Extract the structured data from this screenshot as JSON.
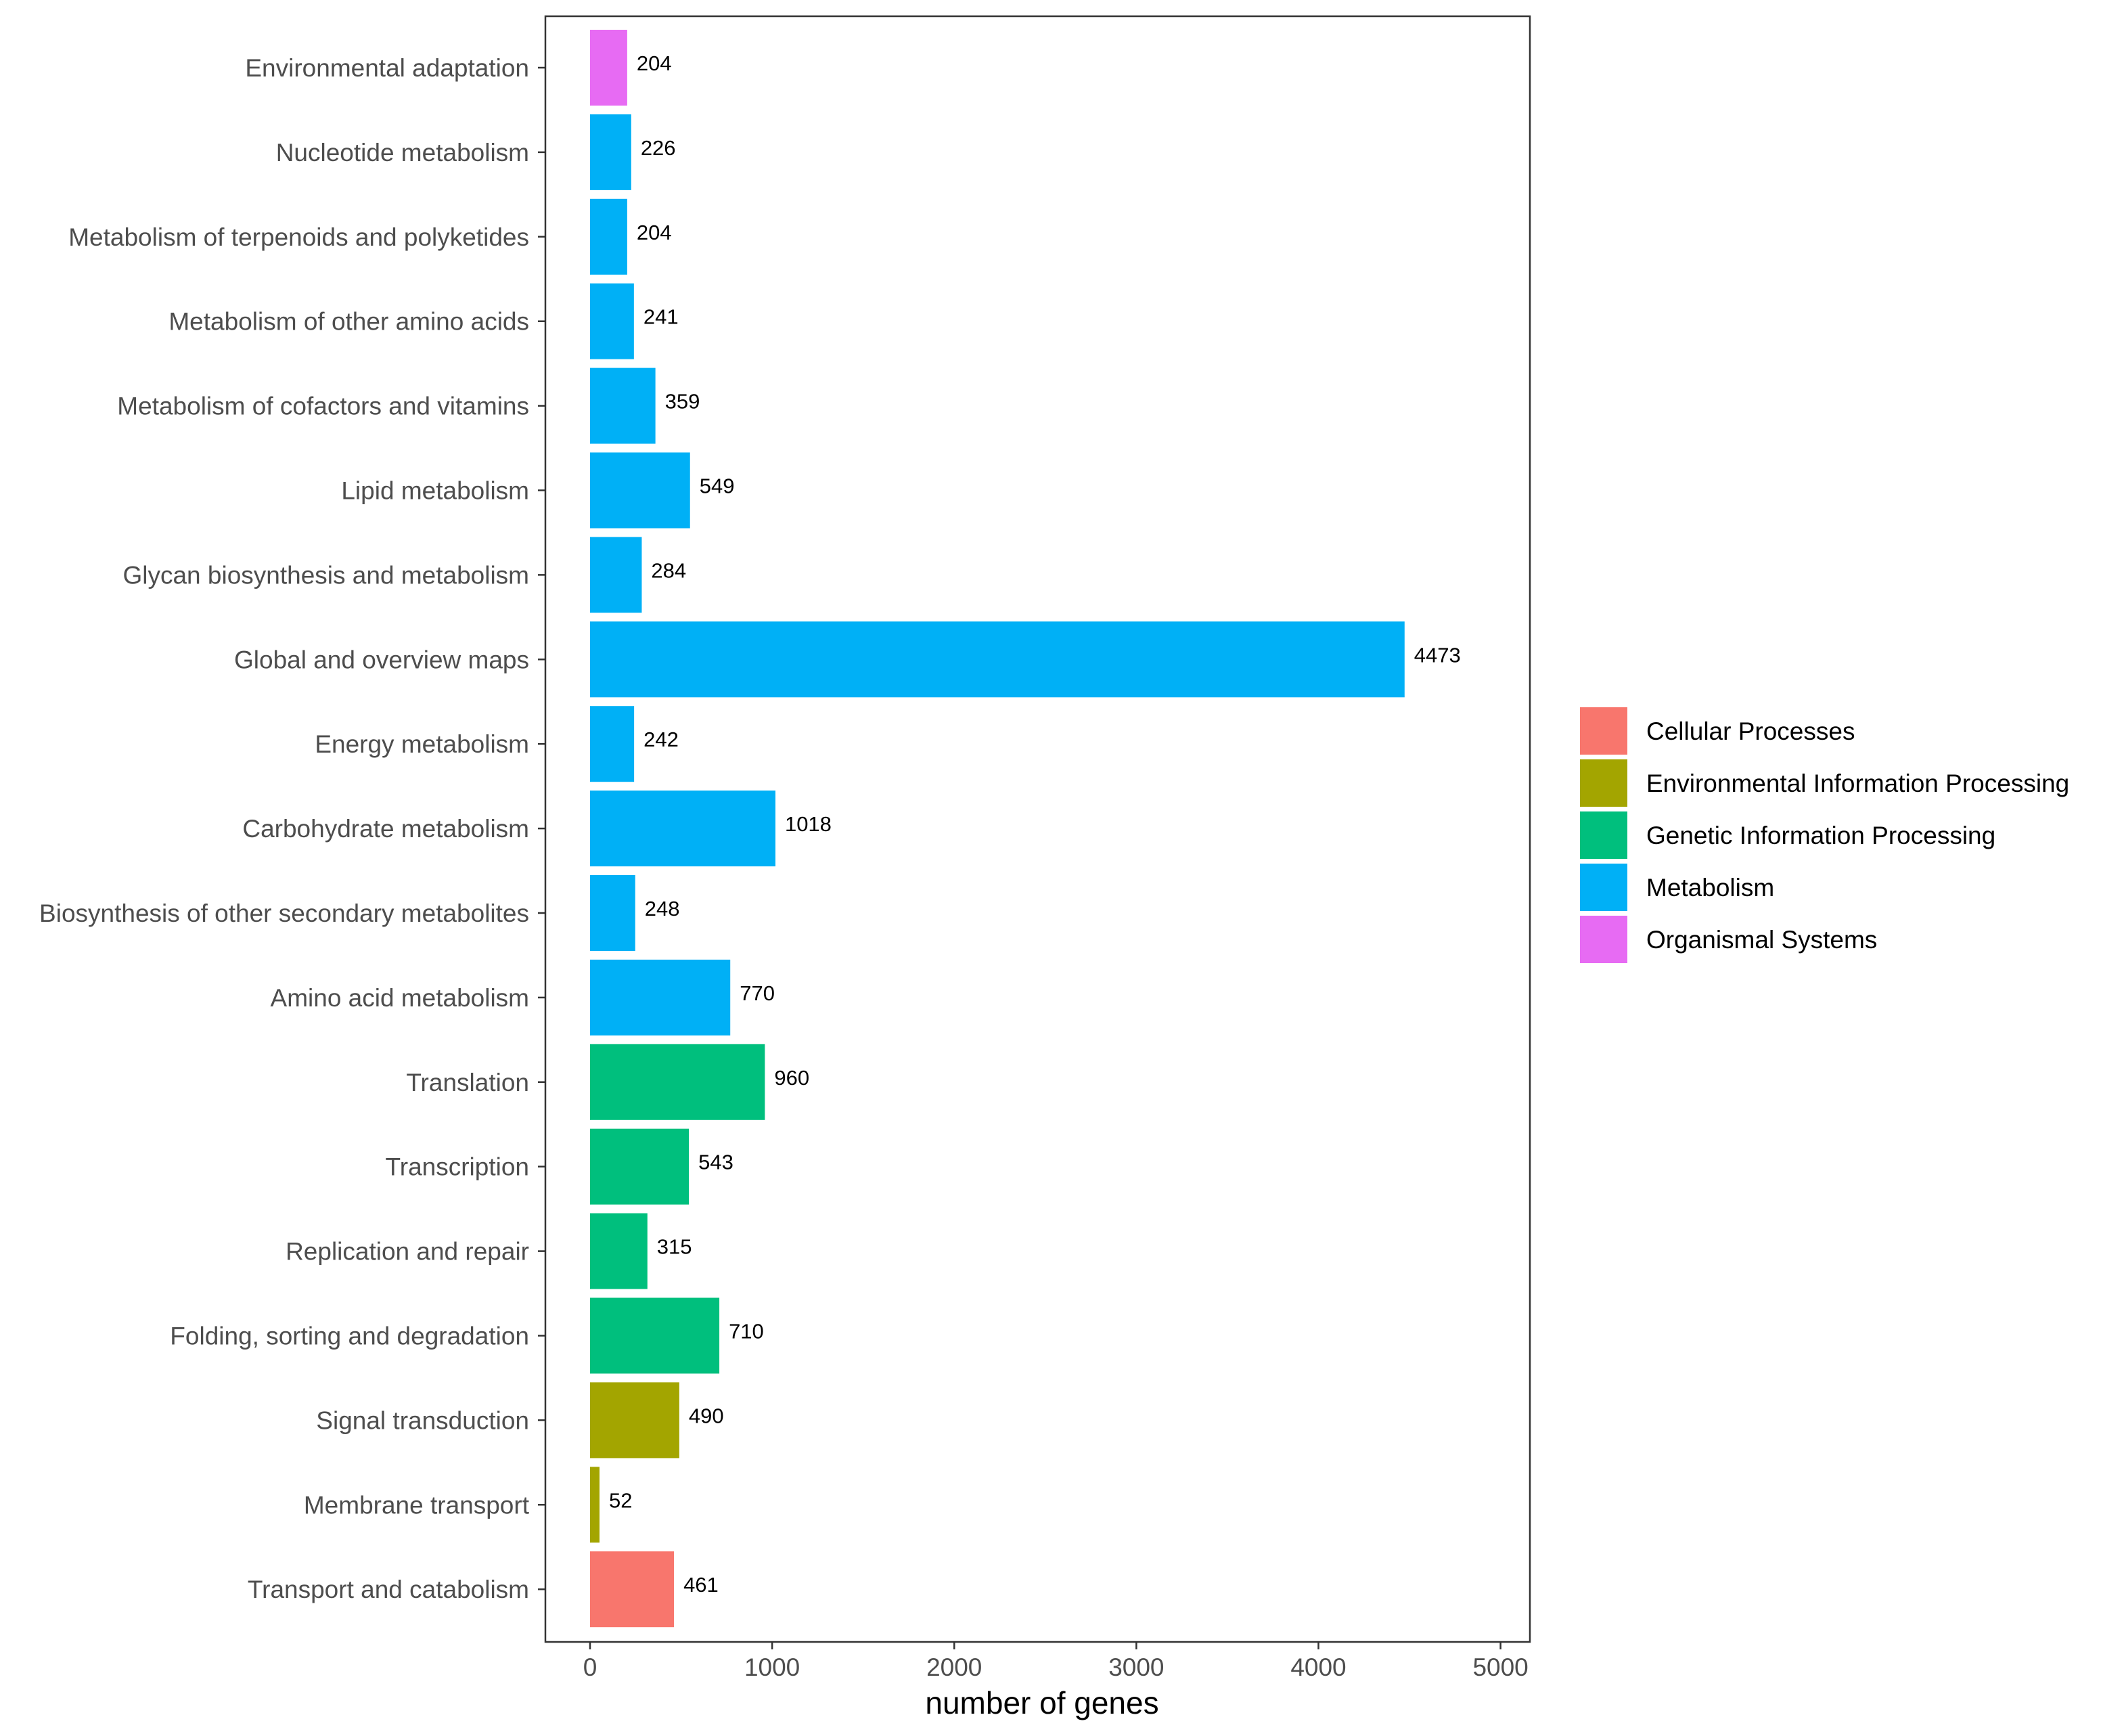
{
  "chart_data": {
    "type": "bar",
    "orientation": "horizontal",
    "xlabel": "number of genes",
    "ylabel": "",
    "xlim": [
      0,
      5000
    ],
    "x_ticks": [
      0,
      1000,
      2000,
      3000,
      4000,
      5000
    ],
    "grid": false,
    "legend_position": "right",
    "legend": [
      {
        "name": "Cellular Processes",
        "color": "#F8766D"
      },
      {
        "name": "Environmental Information Processing",
        "color": "#A3A500"
      },
      {
        "name": "Genetic Information Processing",
        "color": "#00BF7D"
      },
      {
        "name": "Metabolism",
        "color": "#00B0F6"
      },
      {
        "name": "Organismal Systems",
        "color": "#E76BF3"
      }
    ],
    "bars": [
      {
        "category": "Environmental adaptation",
        "value": 204,
        "group": "Organismal Systems"
      },
      {
        "category": "Nucleotide metabolism",
        "value": 226,
        "group": "Metabolism"
      },
      {
        "category": "Metabolism of terpenoids and polyketides",
        "value": 204,
        "group": "Metabolism"
      },
      {
        "category": "Metabolism of other amino acids",
        "value": 241,
        "group": "Metabolism"
      },
      {
        "category": "Metabolism of cofactors and vitamins",
        "value": 359,
        "group": "Metabolism"
      },
      {
        "category": "Lipid metabolism",
        "value": 549,
        "group": "Metabolism"
      },
      {
        "category": "Glycan biosynthesis and metabolism",
        "value": 284,
        "group": "Metabolism"
      },
      {
        "category": "Global and overview maps",
        "value": 4473,
        "group": "Metabolism"
      },
      {
        "category": "Energy metabolism",
        "value": 242,
        "group": "Metabolism"
      },
      {
        "category": "Carbohydrate metabolism",
        "value": 1018,
        "group": "Metabolism"
      },
      {
        "category": "Biosynthesis of other secondary metabolites",
        "value": 248,
        "group": "Metabolism"
      },
      {
        "category": "Amino acid metabolism",
        "value": 770,
        "group": "Metabolism"
      },
      {
        "category": "Translation",
        "value": 960,
        "group": "Genetic Information Processing"
      },
      {
        "category": "Transcription",
        "value": 543,
        "group": "Genetic Information Processing"
      },
      {
        "category": "Replication and repair",
        "value": 315,
        "group": "Genetic Information Processing"
      },
      {
        "category": "Folding, sorting and degradation",
        "value": 710,
        "group": "Genetic Information Processing"
      },
      {
        "category": "Signal transduction",
        "value": 490,
        "group": "Environmental Information Processing"
      },
      {
        "category": "Membrane transport",
        "value": 52,
        "group": "Environmental Information Processing"
      },
      {
        "category": "Transport and catabolism",
        "value": 461,
        "group": "Cellular Processes"
      }
    ]
  }
}
